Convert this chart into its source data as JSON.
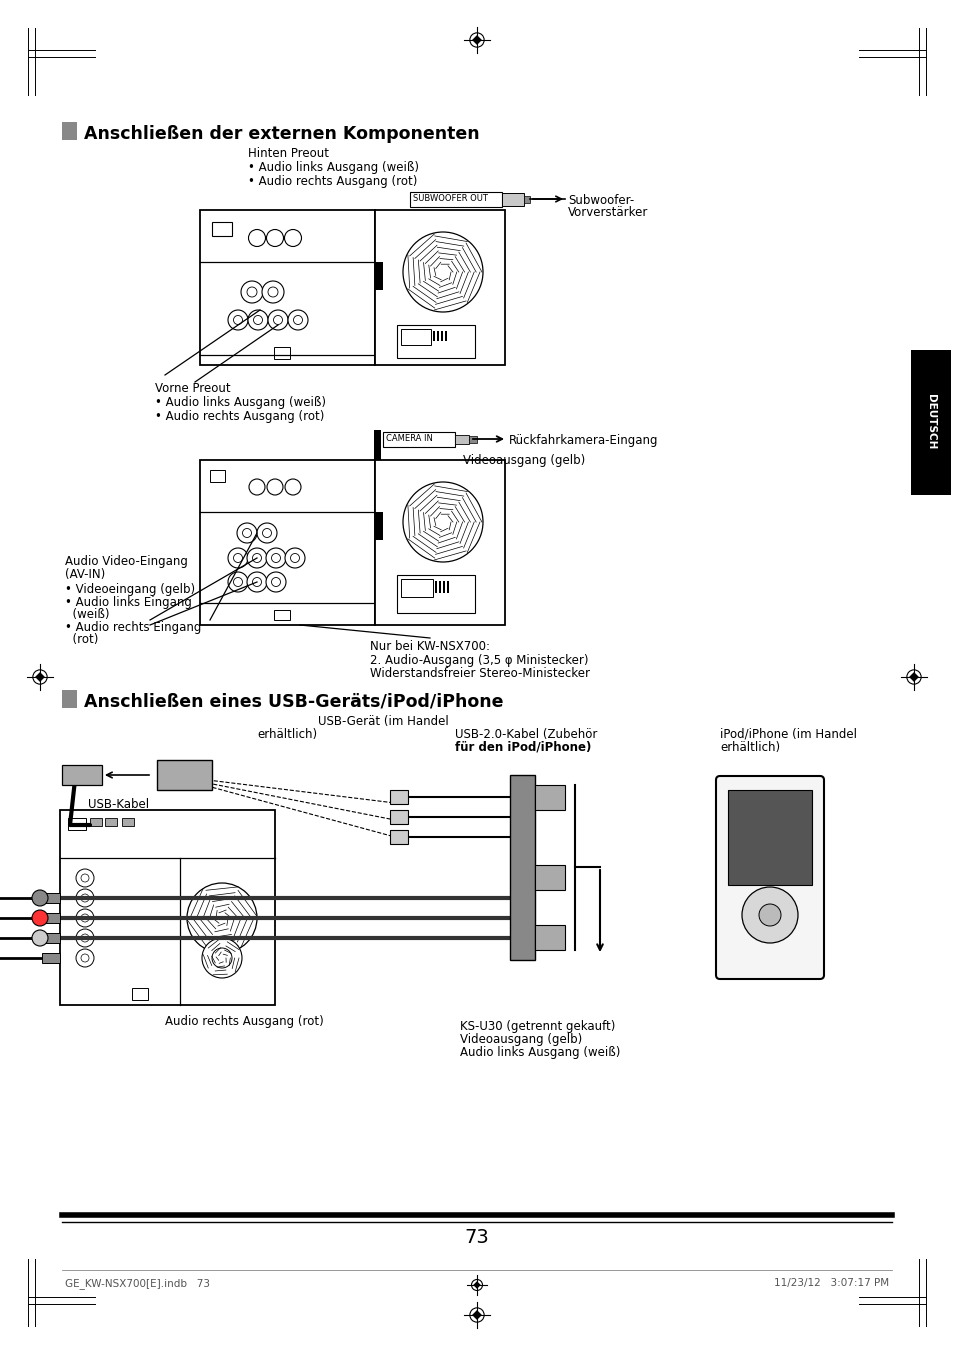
{
  "bg_color": "#ffffff",
  "title1": "Anschließen der externen Komponenten",
  "title2": "Anschließen eines USB-Geräts/iPod/iPhone",
  "page_number": "73",
  "footer_left": "GE_KW-NSX700[E].indb   73",
  "footer_right": "11/23/12   3:07:17 PM",
  "deutsch_label": "DEUTSCH",
  "hinten_preout": "Hinten Preout",
  "hinten_b1": "Audio links Ausgang (weiß)",
  "hinten_b2": "Audio rechts Ausgang (rot)",
  "subwoofer_out": "SUBWOOFER OUT",
  "subwoofer_label1": "Subwoofer-",
  "subwoofer_label2": "Vorverstärker",
  "vorne_preout": "Vorne Preout",
  "vorne_b1": "Audio links Ausgang (weiß)",
  "vorne_b2": "Audio rechts Ausgang (rot)",
  "camera_in": "CAMERA IN",
  "rueckfahr": "Rückfahrkamera-Eingang",
  "videoausgang_gelb": "Videoausgang (gelb)",
  "av_in_title": "Audio Video-Eingang",
  "av_in_sub": "(AV-IN)",
  "av_b1": "Videoeingang (gelb)",
  "av_b2": "Audio links Eingang",
  "av_b2b": "(weiß)",
  "av_b3": "Audio rechts Eingang",
  "av_b3b": "(rot)",
  "nur_bei": "Nur bei KW-NSX700:",
  "audio_ausgang": "2. Audio-Ausgang (3,5 φ Ministecker)",
  "widerstands": "Widerstandsfreier Stereo-Ministecker",
  "usb_kabel": "USB-Kabel",
  "usb_geraet1": "USB-Gerät (im Handel",
  "usb_geraet2": "erhältlich)",
  "usb_20_1": "USB-2.0-Kabel (Zubehör",
  "usb_20_2": "für den iPod/iPhone)",
  "ipod_1": "iPod/iPhone (im Handel",
  "ipod_2": "erhältlich)",
  "ks_u30": "KS-U30 (getrennt gekauft)",
  "video_gelb": "Videoausgang (gelb)",
  "audio_links_w": "Audio links Ausgang (weiß)",
  "audio_rechts_r": "Audio rechts Ausgang (rot)"
}
